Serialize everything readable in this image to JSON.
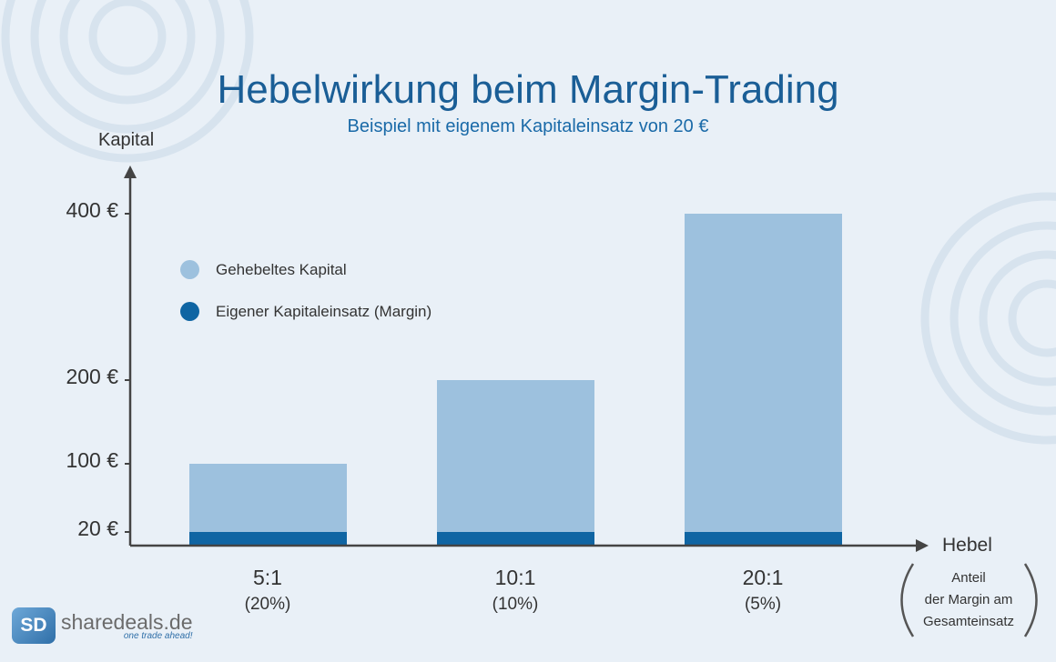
{
  "chart_data": {
    "type": "bar",
    "title": "Hebelwirkung beim Margin-Trading",
    "subtitle": "Beispiel mit eigenem Kapitaleinsatz von 20 €",
    "ylabel": "Kapital",
    "xlabel": "Hebel",
    "categories": [
      "5:1",
      "10:1",
      "20:1"
    ],
    "category_sublabels": [
      "(20%)",
      "(10%)",
      "(5%)"
    ],
    "yticks": [
      {
        "value": 20,
        "label": "20 €"
      },
      {
        "value": 100,
        "label": "100 €"
      },
      {
        "value": 200,
        "label": "200 €"
      },
      {
        "value": 400,
        "label": "400 €"
      }
    ],
    "series": [
      {
        "name": "Gehebeltes Kapital",
        "values": [
          100,
          200,
          400
        ],
        "color": "#9dc1de"
      },
      {
        "name": "Eigener Kapitaleinsatz (Margin)",
        "values": [
          20,
          20,
          20
        ],
        "color": "#0f65a3"
      }
    ],
    "legend": "top-left",
    "grid": false,
    "x_axis_note": [
      "Anteil",
      "der Margin am",
      "Gesamteinsatz"
    ]
  },
  "logo": {
    "mark": "SD",
    "name": "sharedeals.de",
    "tagline": "one trade ahead!"
  },
  "colors": {
    "background": "#e9f0f7",
    "title": "#1a5e96",
    "axis": "#444444",
    "decor_rings": "#d3e0ec"
  }
}
